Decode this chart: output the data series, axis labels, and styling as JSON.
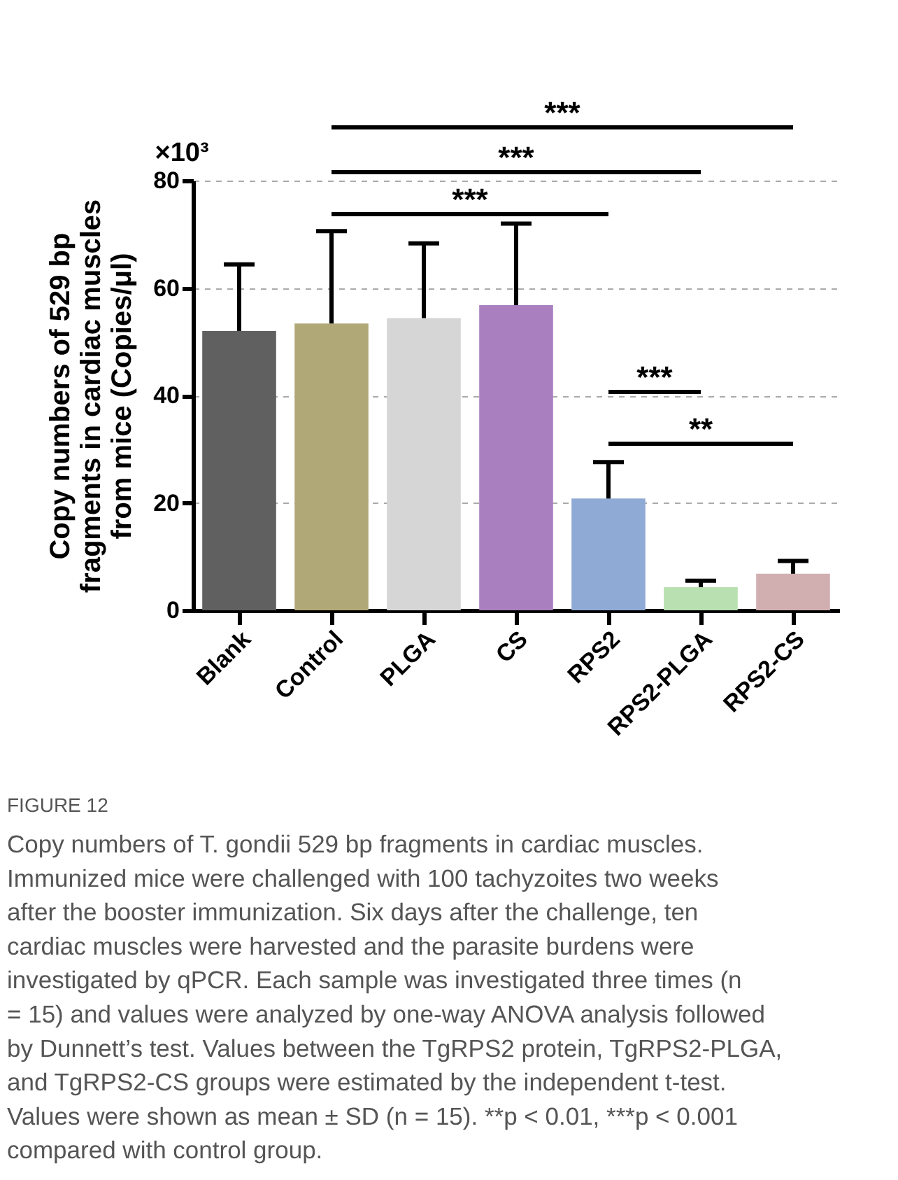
{
  "chart_data": {
    "type": "bar",
    "categories": [
      "Blank",
      "Control",
      "PLGA",
      "CS",
      "RPS2",
      "RPS2-PLGA",
      "RPS2-CS"
    ],
    "values": [
      52.0,
      53.4,
      54.4,
      56.8,
      20.8,
      4.3,
      6.8
    ],
    "errors": [
      12.4,
      17.2,
      13.9,
      15.2,
      6.8,
      1.2,
      2.4
    ],
    "colors": [
      "#606060",
      "#b1a878",
      "#d6d6d6",
      "#a97fbf",
      "#8faad4",
      "#b8e0b0",
      "#d1afb0"
    ],
    "ylabel": "Copy numbers of 529 bp fragments in cardiac muscles from mice (Copies/μl)",
    "ylim": [
      0,
      80
    ],
    "yticks": [
      0,
      20,
      40,
      60,
      80
    ],
    "grid": "y",
    "legend": false,
    "annotations": [
      "***",
      "***",
      "***",
      "***",
      "**",
      "×10³",
      "FIGURE 12",
      "Copy numbers of T. gondii 529 bp fragments in cardiac muscles. Immunized mice were challenged with 100 tachyzoites two weeks after the booster immunization. Six days after the challenge, ten cardiac muscles were harvested and the parasite burdens were investigated by qPCR. Each sample was investigated three times (n = 15) and values were analyzed by one-way ANOVA analysis followed by Dunnett’s test. Values between the TgRPS2 protein, TgRPS2-PLGA, and TgRPS2-CS groups were estimated by the independent t-test. Values were shown as mean ± SD (n = 15). **p < 0.01, ***p < 0.001 compared with control group."
    ]
  }
}
